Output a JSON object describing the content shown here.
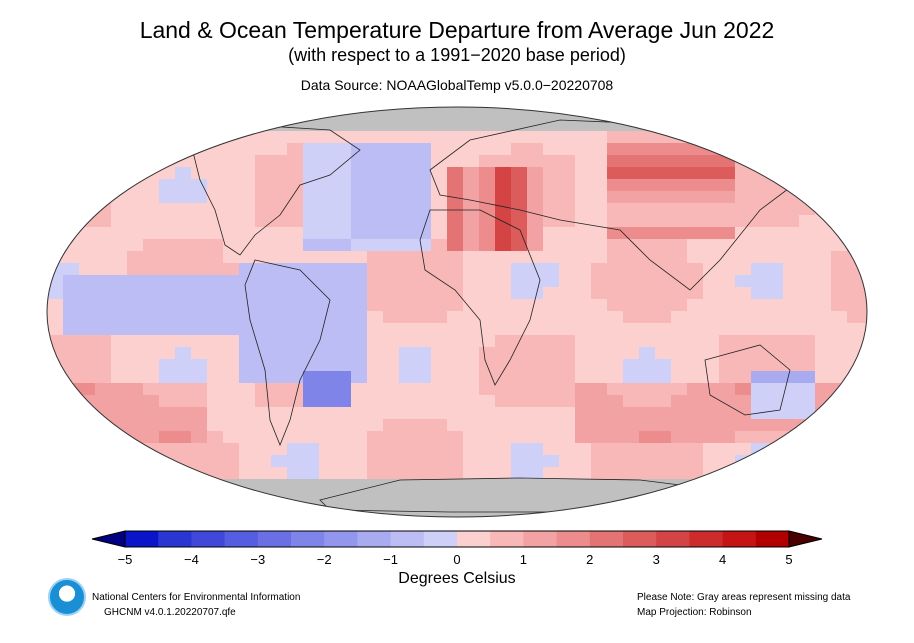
{
  "header": {
    "title": "Land & Ocean Temperature Departure from Average Jun 2022",
    "subtitle": "(with respect to a 1991−2020 base period)",
    "source": "Data Source: NOAAGlobalTemp v5.0.0−20220708"
  },
  "colorbar": {
    "ticks": [
      "−5",
      "−4",
      "−3",
      "−2",
      "−1",
      "0",
      "1",
      "2",
      "3",
      "4",
      "5"
    ],
    "label": "Degrees Celsius",
    "colors": [
      "#0a14c8",
      "#2a36d2",
      "#3f48d8",
      "#555de0",
      "#6a70e3",
      "#7f84e8",
      "#9296ec",
      "#a8abf0",
      "#bbbdf4",
      "#cfd0f8",
      "#fdd0d0",
      "#f8b8b8",
      "#f2a2a2",
      "#ec8c8c",
      "#e47474",
      "#dc5c5c",
      "#d44444",
      "#cc2c2c",
      "#c41414",
      "#b00000"
    ],
    "missing_color": "#c0c0c0"
  },
  "footer": {
    "org": "National Centers for Environmental Information",
    "dataset": "GHCNM v4.0.1.20220707.qfe",
    "note": "Please Note: Gray areas represent missing data",
    "projection": "Map Projection: Robinson"
  }
}
